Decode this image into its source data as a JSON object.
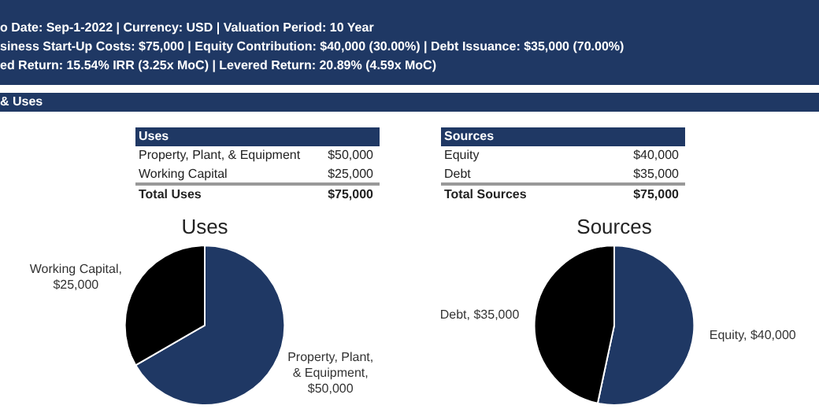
{
  "chart_data": [
    {
      "type": "other",
      "annotations": [
        "o Date: Sep-1-2022 | Currency: USD | Valuation Period: 10 Year",
        "siness Start-Up Costs: $75,000 | Equity Contribution: $40,000 (30.00%) | Debt Issuance: $35,000 (70.00%)",
        "ed Return: 15.54% IRR (3.25x MoC) | Levered Return: 20.89% (4.59x MoC)",
        "& Uses"
      ]
    },
    {
      "type": "pie",
      "title": "Uses",
      "categories": [
        "Property, Plant, & Equipment, $50,000",
        "Working Capital, $25,000"
      ],
      "values": [
        50000,
        25000
      ],
      "colors": [
        "#1f3864",
        "#000000"
      ],
      "annotations": [
        "Property, Plant, & Equipment",
        "$50,000",
        "Working Capital",
        "$25,000",
        "Total Uses",
        "$75,000"
      ]
    },
    {
      "type": "pie",
      "title": "Sources",
      "categories": [
        "Equity, $40,000",
        "Debt, $35,000"
      ],
      "values": [
        40000,
        35000
      ],
      "colors": [
        "#1f3864",
        "#000000"
      ],
      "annotations": [
        "Equity",
        "$40,000",
        "Debt",
        "$35,000",
        "Total Sources",
        "$75,000"
      ]
    }
  ]
}
